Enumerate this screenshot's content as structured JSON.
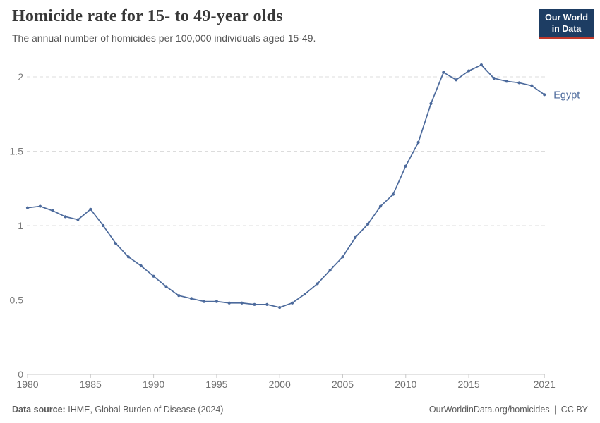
{
  "header": {
    "title": "Homicide rate for 15- to 49-year olds",
    "subtitle": "The annual number of homicides per 100,000 individuals aged 15-49."
  },
  "logo": {
    "line1": "Our World",
    "line2": "in Data",
    "bg_color": "#1d3d63",
    "accent_color": "#c0392b"
  },
  "chart_data": {
    "type": "line",
    "title": "Homicide rate for 15- to 49-year olds",
    "xlabel": "",
    "ylabel": "",
    "ylim": [
      0,
      2.2
    ],
    "grid": "horizontal-dashed",
    "legend_position": "end-of-line-label",
    "x": [
      1980,
      1981,
      1982,
      1983,
      1984,
      1985,
      1986,
      1987,
      1988,
      1989,
      1990,
      1991,
      1992,
      1993,
      1994,
      1995,
      1996,
      1997,
      1998,
      1999,
      2000,
      2001,
      2002,
      2003,
      2004,
      2005,
      2006,
      2007,
      2008,
      2009,
      2010,
      2011,
      2012,
      2013,
      2014,
      2015,
      2016,
      2017,
      2018,
      2019,
      2020,
      2021
    ],
    "series": [
      {
        "name": "Egypt",
        "color": "#4c6a9c",
        "values": [
          1.12,
          1.13,
          1.1,
          1.06,
          1.04,
          1.11,
          1.0,
          0.88,
          0.79,
          0.73,
          0.66,
          0.59,
          0.53,
          0.51,
          0.49,
          0.49,
          0.48,
          0.48,
          0.47,
          0.47,
          0.45,
          0.48,
          0.54,
          0.61,
          0.7,
          0.79,
          0.92,
          1.01,
          1.13,
          1.21,
          1.4,
          1.56,
          1.82,
          2.03,
          1.98,
          2.04,
          2.08,
          1.99,
          1.97,
          1.96,
          1.94,
          1.88
        ]
      }
    ],
    "yticks": [
      0,
      0.5,
      1,
      1.5,
      2
    ],
    "xticks": [
      1980,
      1985,
      1990,
      1995,
      2000,
      2005,
      2010,
      2015,
      2021
    ]
  },
  "footer": {
    "source_label": "Data source:",
    "source": "IHME, Global Burden of Disease (2024)",
    "url": "OurWorldinData.org/homicides",
    "separator": "|",
    "license": "CC BY"
  }
}
